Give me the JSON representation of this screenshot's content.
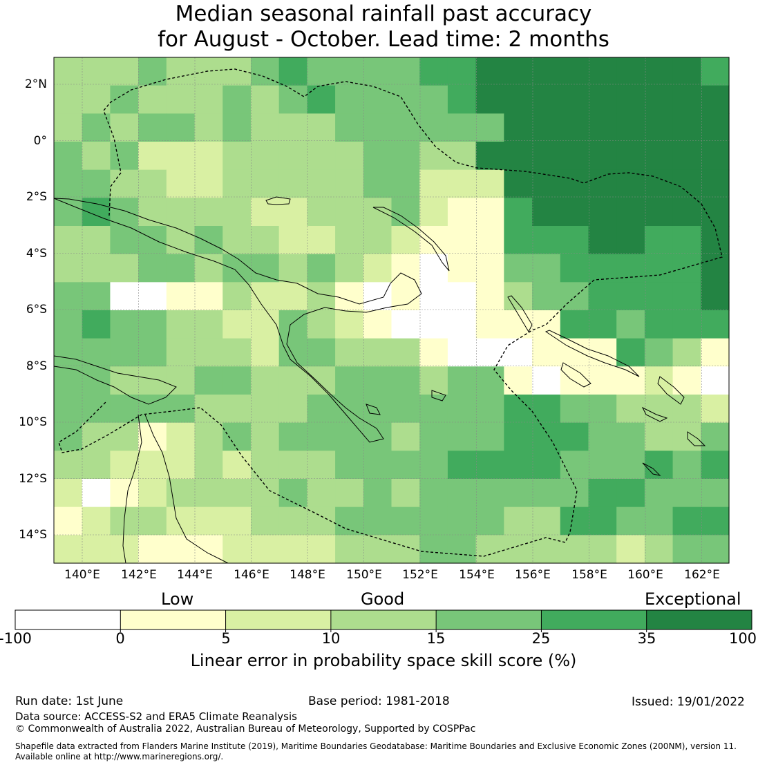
{
  "title": {
    "line1": "Median seasonal rainfall past accuracy",
    "line2": "for August - October. Lead time: 2 months"
  },
  "lon_labels": [
    "140°E",
    "142°E",
    "144°E",
    "146°E",
    "148°E",
    "150°E",
    "152°E",
    "154°E",
    "156°E",
    "158°E",
    "160°E",
    "162°E"
  ],
  "lat_labels": [
    "2°N",
    "0°",
    "2°S",
    "4°S",
    "6°S",
    "8°S",
    "10°S",
    "12°S",
    "14°S"
  ],
  "legend": {
    "categories": [
      "Low",
      "Good",
      "Exceptional"
    ],
    "ticks": [
      "-100",
      "0",
      "5",
      "10",
      "15",
      "25",
      "35",
      "100"
    ],
    "colors": [
      "#ffffff",
      "#ffffcc",
      "#d9f0a3",
      "#addd8e",
      "#78c679",
      "#41ab5d",
      "#238443"
    ],
    "title": "Linear error in probability space skill score (%)"
  },
  "footer": {
    "run_date": "Run date: 1st June",
    "base_period": "Base period: 1981-2018",
    "issued": "Issued: 19/01/2022",
    "data_source": "Data source: ACCESS-S2 and ERA5 Climate Reanalysis",
    "copyright": "© Commonwealth of Australia 2022, Australian Bureau of Meteorology, Supported by COSPPac",
    "shapefile_line1": "Shapefile data extracted from Flanders Marine Institute (2019), Maritime Boundaries Geodatabase: Maritime Boundaries and Exclusive Economic Zones (200NM), version 11.",
    "shapefile_line2": "Available online at http://www.marineregions.org/."
  }
}
